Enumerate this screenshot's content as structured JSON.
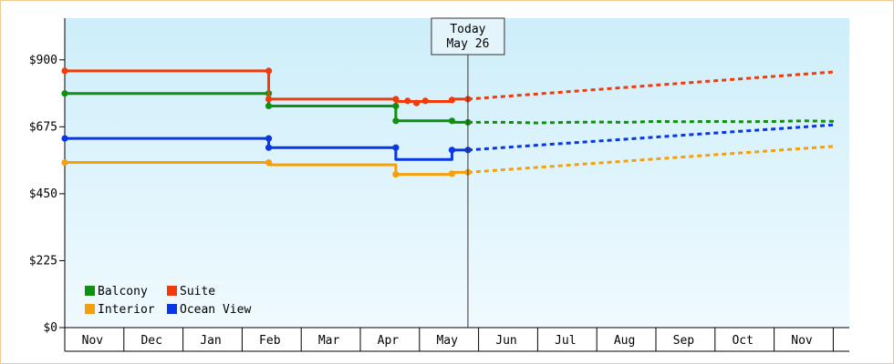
{
  "chart_data": {
    "type": "line",
    "title": "",
    "xlabel": "",
    "ylabel": "",
    "ylim": [
      0,
      1040
    ],
    "y_ticks": [
      {
        "value": 0,
        "label": "$0"
      },
      {
        "value": 225,
        "label": "$225"
      },
      {
        "value": 450,
        "label": "$450"
      },
      {
        "value": 675,
        "label": "$675"
      },
      {
        "value": 900,
        "label": "$900"
      }
    ],
    "x_months": [
      "Nov",
      "Dec",
      "Jan",
      "Feb",
      "Mar",
      "Apr",
      "May",
      "Jun",
      "Jul",
      "Aug",
      "Sep",
      "Oct",
      "Nov"
    ],
    "x_range": [
      0,
      13.05
    ],
    "today": {
      "line1": "Today",
      "line2": "May 26",
      "x": 6.82
    },
    "grid": false,
    "legend_position": "bottom-left",
    "series": [
      {
        "name": "Balcony",
        "color": "#109010",
        "history": [
          [
            0.0,
            787
          ],
          [
            3.45,
            787
          ],
          [
            3.45,
            745
          ],
          [
            5.6,
            745
          ],
          [
            5.6,
            695
          ],
          [
            6.55,
            695
          ],
          [
            6.55,
            690
          ],
          [
            6.82,
            690
          ]
        ],
        "points": [
          [
            0.0,
            787
          ],
          [
            3.45,
            787
          ],
          [
            3.45,
            745
          ],
          [
            5.6,
            745
          ],
          [
            5.6,
            695
          ],
          [
            6.55,
            695
          ],
          [
            6.82,
            690
          ]
        ],
        "forecast": [
          [
            6.82,
            690
          ],
          [
            7.5,
            690
          ],
          [
            8.0,
            688
          ],
          [
            8.5,
            690
          ],
          [
            9.0,
            691
          ],
          [
            9.5,
            690
          ],
          [
            10.0,
            693
          ],
          [
            10.5,
            692
          ],
          [
            11.0,
            693
          ],
          [
            11.5,
            692
          ],
          [
            12.0,
            693
          ],
          [
            12.5,
            695
          ],
          [
            13.05,
            693
          ]
        ]
      },
      {
        "name": "Suite",
        "color": "#f03c0a",
        "history": [
          [
            0.0,
            863
          ],
          [
            3.45,
            863
          ],
          [
            3.45,
            768
          ],
          [
            5.6,
            768
          ],
          [
            5.6,
            760
          ],
          [
            6.55,
            760
          ],
          [
            6.55,
            768
          ],
          [
            6.82,
            768
          ]
        ],
        "points": [
          [
            0.0,
            863
          ],
          [
            3.45,
            863
          ],
          [
            3.45,
            768
          ],
          [
            5.6,
            768
          ],
          [
            5.8,
            762
          ],
          [
            5.95,
            755
          ],
          [
            6.1,
            762
          ],
          [
            6.55,
            765
          ],
          [
            6.82,
            768
          ]
        ],
        "forecast": [
          [
            6.82,
            768
          ],
          [
            13.05,
            860
          ]
        ]
      },
      {
        "name": "Interior",
        "color": "#f5a00a",
        "history": [
          [
            0.0,
            555
          ],
          [
            3.45,
            555
          ],
          [
            3.45,
            547
          ],
          [
            5.6,
            547
          ],
          [
            5.6,
            515
          ],
          [
            6.55,
            515
          ],
          [
            6.55,
            522
          ],
          [
            6.82,
            522
          ]
        ],
        "points": [
          [
            0.0,
            555
          ],
          [
            3.45,
            555
          ],
          [
            5.6,
            515
          ],
          [
            6.55,
            517
          ],
          [
            6.82,
            522
          ]
        ],
        "forecast": [
          [
            6.82,
            522
          ],
          [
            13.05,
            610
          ]
        ]
      },
      {
        "name": "Ocean View",
        "color": "#0a37e6",
        "history": [
          [
            0.0,
            636
          ],
          [
            3.45,
            636
          ],
          [
            3.45,
            605
          ],
          [
            5.6,
            605
          ],
          [
            5.6,
            565
          ],
          [
            6.55,
            565
          ],
          [
            6.55,
            597
          ],
          [
            6.82,
            597
          ]
        ],
        "points": [
          [
            0.0,
            636
          ],
          [
            3.45,
            636
          ],
          [
            3.45,
            605
          ],
          [
            5.6,
            605
          ],
          [
            6.55,
            597
          ],
          [
            6.82,
            597
          ]
        ],
        "forecast": [
          [
            6.82,
            597
          ],
          [
            13.05,
            682
          ]
        ]
      }
    ]
  },
  "legend": {
    "rows": [
      [
        "Balcony",
        "Suite"
      ],
      [
        "Interior",
        "Ocean View"
      ]
    ]
  }
}
